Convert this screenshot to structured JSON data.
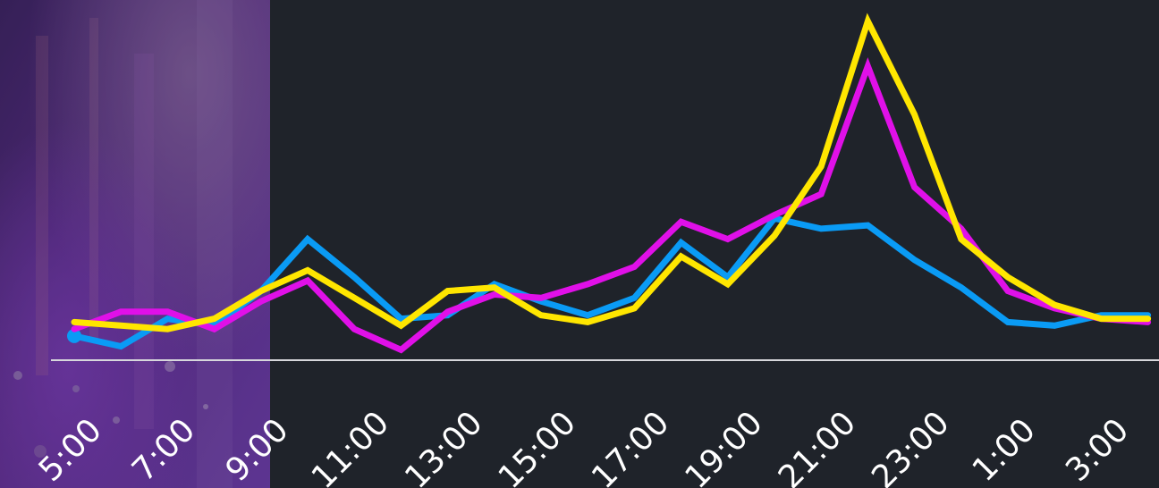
{
  "chart_data": {
    "type": "line",
    "title": "",
    "xlabel": "",
    "ylabel": "",
    "grid": false,
    "legend": "none",
    "x": [
      "5:00",
      "6:00",
      "7:00",
      "8:00",
      "9:00",
      "10:00",
      "11:00",
      "12:00",
      "13:00",
      "14:00",
      "15:00",
      "16:00",
      "17:00",
      "18:00",
      "19:00",
      "20:00",
      "21:00",
      "22:00",
      "23:00",
      "0:00",
      "1:00",
      "2:00",
      "3:00",
      "4:00"
    ],
    "tick_labels": [
      "5:00",
      "7:00",
      "9:00",
      "11:00",
      "13:00",
      "15:00",
      "17:00",
      "19:00",
      "21:00",
      "23:00",
      "1:00",
      "3:00"
    ],
    "ylim": [
      0,
      100
    ],
    "series": [
      {
        "color": "#0a9bf5",
        "values": [
          7,
          4,
          12,
          10,
          20,
          35,
          24,
          12,
          13,
          22,
          17,
          13,
          18,
          34,
          24,
          41,
          38,
          39,
          29,
          21,
          11,
          10,
          13,
          13
        ]
      },
      {
        "color": "#e010e8",
        "values": [
          9,
          14,
          14,
          9,
          17,
          23,
          9,
          3,
          14,
          19,
          18,
          22,
          27,
          40,
          35,
          42,
          48,
          85,
          50,
          38,
          20,
          15,
          12,
          11
        ]
      },
      {
        "color": "#ffe600",
        "values": [
          11,
          10,
          9,
          12,
          20,
          26,
          18,
          10,
          20,
          21,
          13,
          11,
          15,
          30,
          22,
          36,
          56,
          98,
          71,
          35,
          24,
          16,
          12,
          12
        ]
      }
    ]
  }
}
